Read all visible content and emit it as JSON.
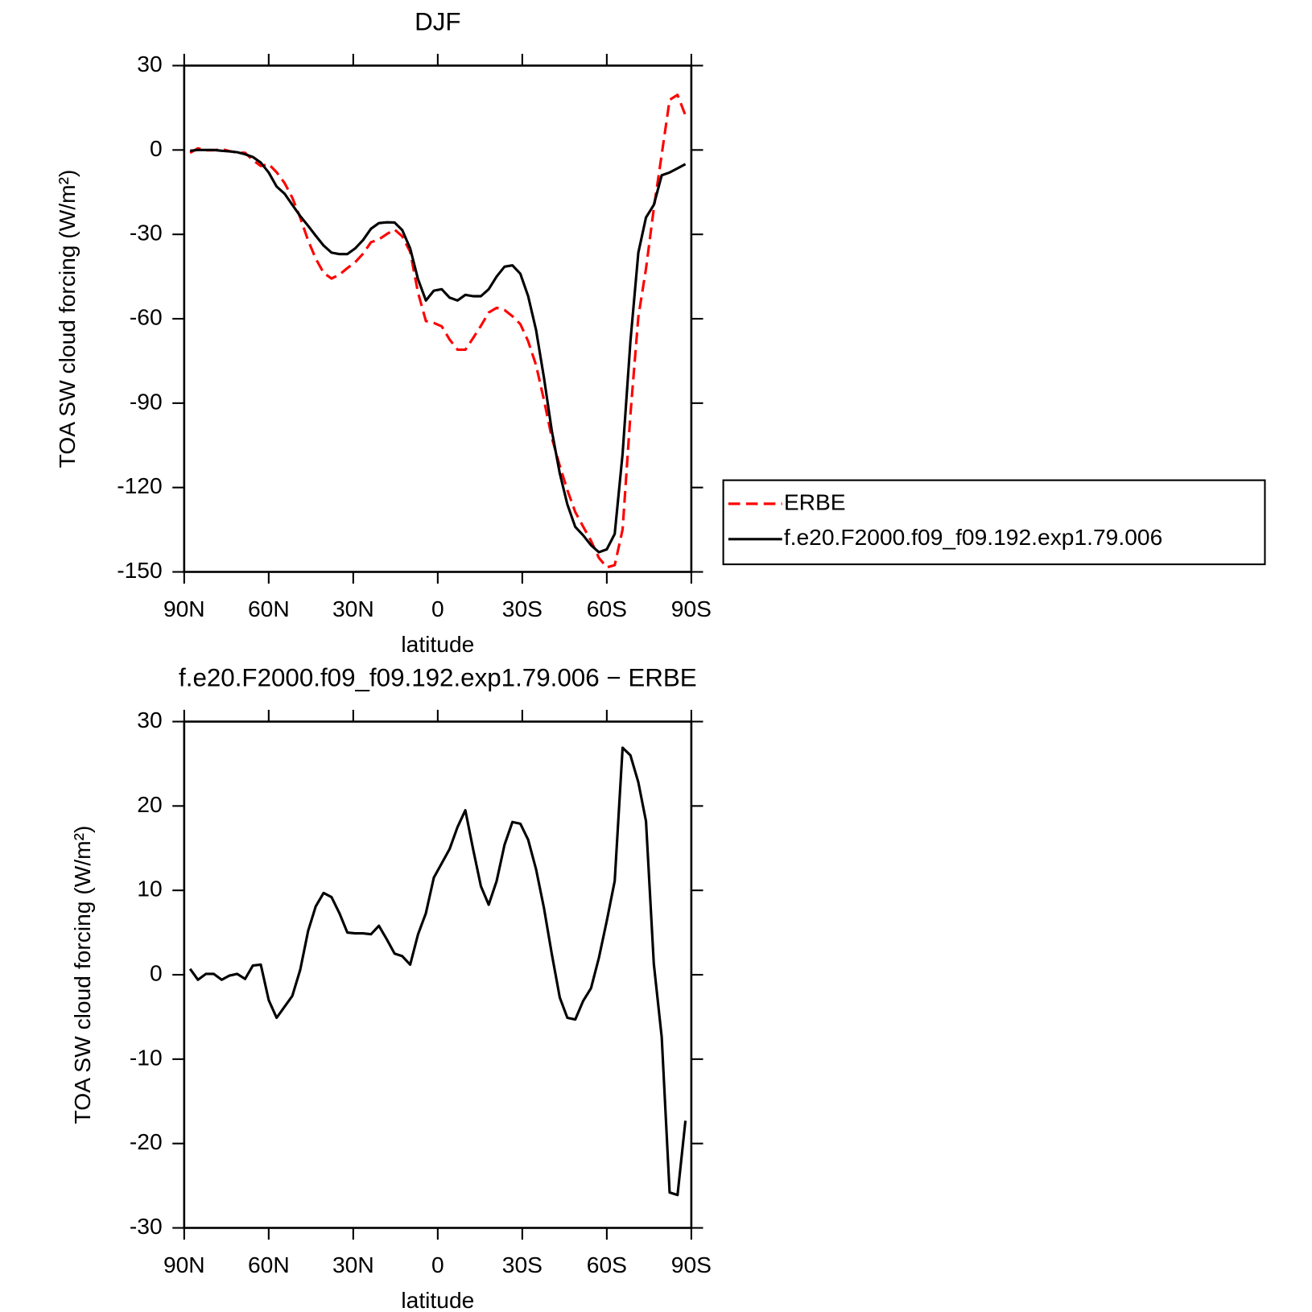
{
  "chart_data": [
    {
      "type": "line",
      "title": "DJF",
      "xlabel": "latitude",
      "ylabel": "TOA SW cloud forcing (W/m²)",
      "x": [
        87.9,
        85.1,
        82.3,
        79.5,
        76.7,
        73.9,
        71.2,
        68.4,
        65.6,
        62.8,
        60.0,
        57.2,
        54.4,
        51.6,
        48.8,
        46.0,
        43.3,
        40.5,
        37.7,
        34.9,
        32.1,
        29.3,
        26.5,
        23.7,
        20.9,
        18.1,
        15.3,
        12.6,
        9.8,
        7.0,
        4.2,
        1.4,
        -1.4,
        -4.2,
        -7.0,
        -9.8,
        -12.6,
        -15.3,
        -18.1,
        -20.9,
        -23.7,
        -26.5,
        -29.3,
        -32.1,
        -34.9,
        -37.7,
        -40.5,
        -43.3,
        -46.0,
        -48.8,
        -51.6,
        -54.4,
        -57.2,
        -60.0,
        -62.8,
        -65.6,
        -68.4,
        -71.2,
        -73.9,
        -76.7,
        -79.5,
        -82.3,
        -85.1,
        -87.9
      ],
      "series": [
        {
          "name": "ERBE",
          "color": "#ff0000",
          "linestyle": "dashed",
          "values": [
            -1.0,
            0.6,
            -0.1,
            -0.1,
            0.3,
            -0.4,
            -0.9,
            -1.0,
            -3.6,
            -5.7,
            -5.0,
            -7.9,
            -11.7,
            -17.0,
            -24.1,
            -32.2,
            -38.6,
            -43.7,
            -45.7,
            -44.3,
            -42.0,
            -39.9,
            -36.9,
            -32.8,
            -31.8,
            -29.9,
            -28.3,
            -30.7,
            -36.2,
            -50.8,
            -60.8,
            -61.5,
            -62.7,
            -67.4,
            -71.0,
            -71.0,
            -66.8,
            -62.5,
            -57.8,
            -56.1,
            -56.9,
            -59.1,
            -61.9,
            -68.0,
            -76.5,
            -88.9,
            -102.4,
            -112.3,
            -120.9,
            -128.7,
            -133.9,
            -138.9,
            -145.0,
            -148.4,
            -147.6,
            -134.9,
            -94.0,
            -59.3,
            -42.2,
            -20.8,
            -1.6,
            17.8,
            19.6,
            12.3
          ]
        },
        {
          "name": "f.e20.F2000.f09_f09.192.exp1.79.006",
          "color": "#000000",
          "linestyle": "solid",
          "values": [
            -0.3,
            0,
            0,
            0,
            -0.3,
            -0.5,
            -0.8,
            -1.5,
            -2.5,
            -4.5,
            -8,
            -13,
            -15.5,
            -19.5,
            -23.5,
            -27,
            -30.5,
            -34,
            -36.5,
            -37,
            -37,
            -35,
            -32,
            -28,
            -26,
            -25.7,
            -25.8,
            -28.5,
            -35,
            -46,
            -53.5,
            -50,
            -49.5,
            -52.5,
            -53.5,
            -51.5,
            -52,
            -52,
            -49.5,
            -45,
            -41.5,
            -41,
            -44,
            -52,
            -64,
            -81,
            -100,
            -115,
            -126,
            -134,
            -137,
            -140.5,
            -143,
            -142,
            -136.5,
            -108,
            -68,
            -36.5,
            -24,
            -19.5,
            -9,
            -8,
            -6.5,
            -5
          ]
        }
      ],
      "xlim": [
        90,
        -90
      ],
      "xticks": [
        {
          "value": 90,
          "label": "90N"
        },
        {
          "value": 60,
          "label": "60N"
        },
        {
          "value": 30,
          "label": "30N"
        },
        0,
        {
          "value": -30,
          "label": "30S"
        },
        {
          "value": -60,
          "label": "60S"
        },
        {
          "value": -90,
          "label": "90S"
        }
      ],
      "ylim": [
        -150,
        30
      ],
      "yticks": [
        30,
        0,
        -30,
        -60,
        -90,
        -120,
        -150
      ],
      "legend": "outside-right"
    },
    {
      "type": "line",
      "title": "f.e20.F2000.f09_f09.192.exp1.79.006 − ERBE",
      "xlabel": "latitude",
      "ylabel": "TOA SW cloud forcing (W/m²)",
      "x": [
        87.9,
        85.1,
        82.3,
        79.5,
        76.7,
        73.9,
        71.2,
        68.4,
        65.6,
        62.8,
        60.0,
        57.2,
        54.4,
        51.6,
        48.8,
        46.0,
        43.3,
        40.5,
        37.7,
        34.9,
        32.1,
        29.3,
        26.5,
        23.7,
        20.9,
        18.1,
        15.3,
        12.6,
        9.8,
        7.0,
        4.2,
        1.4,
        -1.4,
        -4.2,
        -7.0,
        -9.8,
        -12.6,
        -15.3,
        -18.1,
        -20.9,
        -23.7,
        -26.5,
        -29.3,
        -32.1,
        -34.9,
        -37.7,
        -40.5,
        -43.3,
        -46.0,
        -48.8,
        -51.6,
        -54.4,
        -57.2,
        -60.0,
        -62.8,
        -65.6,
        -68.4,
        -71.2,
        -73.9,
        -76.7,
        -79.5,
        -82.3,
        -85.1,
        -87.9
      ],
      "series": [
        {
          "color": "#000000",
          "linestyle": "solid",
          "values": [
            0.7,
            -0.6,
            0.1,
            0.1,
            -0.6,
            -0.1,
            0.1,
            -0.5,
            1.1,
            1.2,
            -3.0,
            -5.1,
            -3.8,
            -2.5,
            0.6,
            5.2,
            8.1,
            9.7,
            9.2,
            7.3,
            5.0,
            4.9,
            4.9,
            4.8,
            5.8,
            4.2,
            2.5,
            2.2,
            1.2,
            4.8,
            7.3,
            11.5,
            13.2,
            14.9,
            17.5,
            19.5,
            14.8,
            10.5,
            8.3,
            11.1,
            15.4,
            18.1,
            17.9,
            16.0,
            12.5,
            7.9,
            2.4,
            -2.7,
            -5.1,
            -5.3,
            -3.1,
            -1.6,
            2.0,
            6.4,
            11.1,
            26.9,
            26.0,
            22.8,
            18.2,
            1.3,
            -7.4,
            -25.8,
            -26.1,
            -17.3
          ]
        }
      ],
      "xlim": [
        90,
        -90
      ],
      "xticks": [
        {
          "value": 90,
          "label": "90N"
        },
        {
          "value": 60,
          "label": "60N"
        },
        {
          "value": 30,
          "label": "30N"
        },
        0,
        {
          "value": -30,
          "label": "30S"
        },
        {
          "value": -60,
          "label": "60S"
        },
        {
          "value": -90,
          "label": "90S"
        }
      ],
      "ylim": [
        -30,
        30
      ],
      "yticks": [
        30,
        20,
        10,
        0,
        -10,
        -20,
        -30
      ]
    }
  ]
}
